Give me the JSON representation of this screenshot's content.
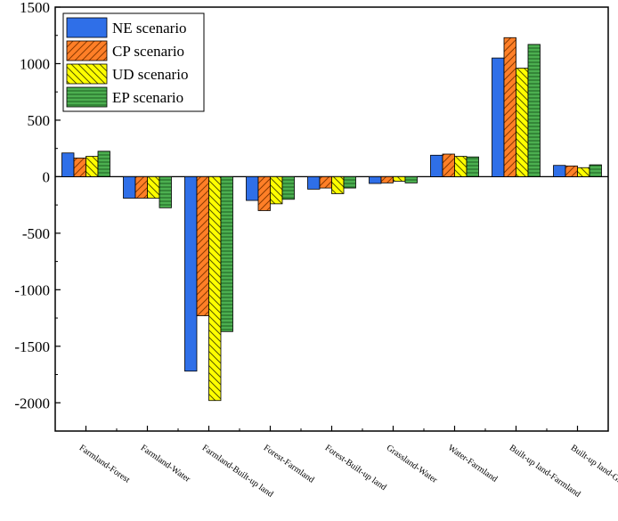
{
  "chart_data": {
    "type": "bar",
    "categories": [
      "Farmland-Forest",
      "Farmland-Water",
      "Farmland-Built-up land",
      "Forest-Farmland",
      "Forest-Built-up land",
      "Grassland-Water",
      "Water-Farmland",
      "Built-up land-Farmland",
      "Built-up land-Grassland"
    ],
    "series": [
      {
        "name": "NE scenario",
        "color": "#2f6fe8",
        "pattern": "solid",
        "values": [
          210,
          -190,
          -1720,
          -210,
          -110,
          -60,
          190,
          1050,
          100
        ]
      },
      {
        "name": "CP scenario",
        "color": "#ff7f27",
        "pattern": "diagonal",
        "values": [
          165,
          -190,
          -1230,
          -300,
          -100,
          -55,
          200,
          1230,
          95
        ]
      },
      {
        "name": "UD scenario",
        "color": "#ffff00",
        "pattern": "back-diagonal",
        "values": [
          180,
          -190,
          -1980,
          -240,
          -150,
          -40,
          180,
          960,
          80
        ]
      },
      {
        "name": "EP scenario",
        "color": "#4caf50",
        "pattern": "horizontal",
        "values": [
          225,
          -275,
          -1370,
          -200,
          -100,
          -55,
          175,
          1170,
          105
        ]
      }
    ],
    "yticks": [
      1500,
      1000,
      500,
      0,
      -500,
      -1000,
      -1500,
      -2000
    ],
    "ylim": [
      -2250,
      1500
    ],
    "title": "",
    "xlabel": "",
    "ylabel": "",
    "legend_position": "top-left",
    "grid": false
  }
}
